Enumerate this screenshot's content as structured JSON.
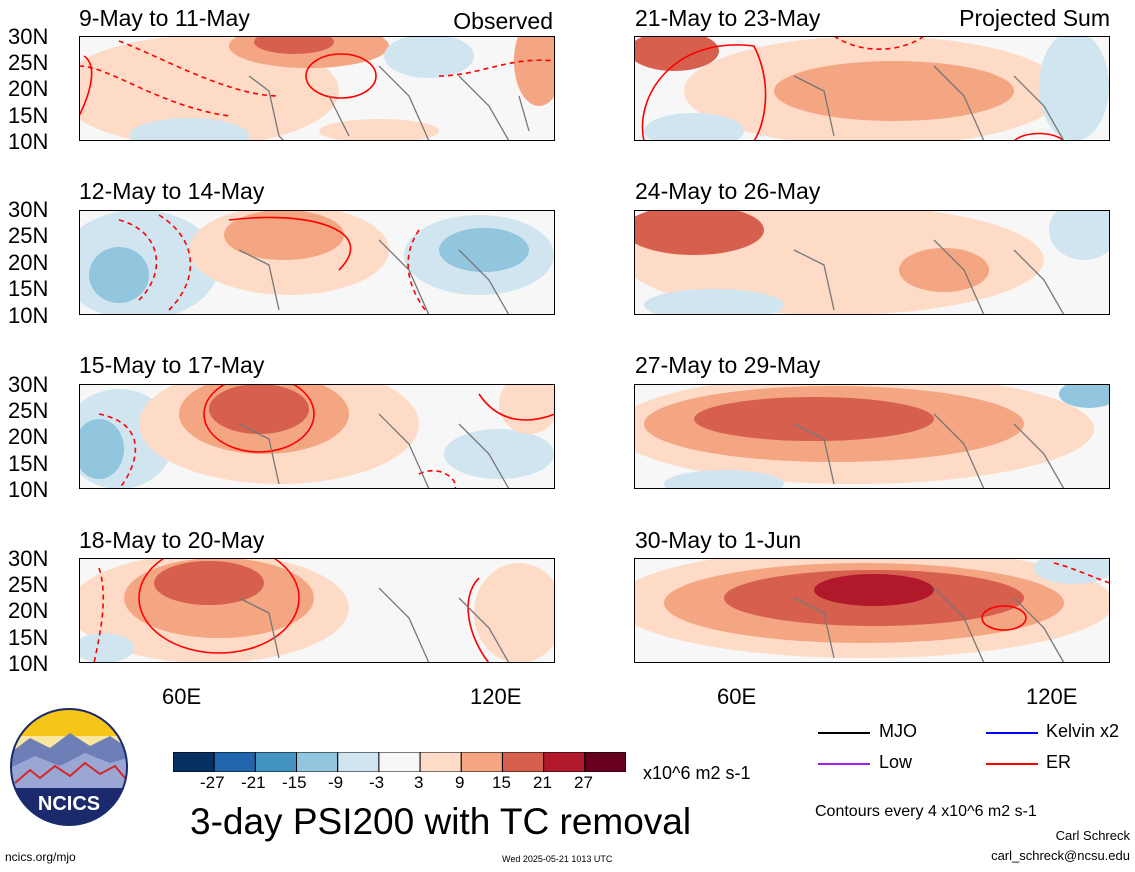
{
  "panels": [
    {
      "title": "9-May to 11-May",
      "tag": "Observed"
    },
    {
      "title": "12-May to 14-May",
      "tag": ""
    },
    {
      "title": "15-May to 17-May",
      "tag": ""
    },
    {
      "title": "18-May to 20-May",
      "tag": ""
    },
    {
      "title": "21-May to 23-May",
      "tag": "Projected Sum"
    },
    {
      "title": "24-May to 26-May",
      "tag": ""
    },
    {
      "title": "27-May to 29-May",
      "tag": ""
    },
    {
      "title": "30-May to 1-Jun",
      "tag": ""
    }
  ],
  "lat_labels": [
    "30N",
    "25N",
    "20N",
    "15N",
    "10N"
  ],
  "lon_labels": [
    "60E",
    "120E"
  ],
  "colorbar": {
    "colors": [
      "#053061",
      "#2166ac",
      "#4393c3",
      "#92c5de",
      "#d1e5f0",
      "#f7f7f7",
      "#fddbc7",
      "#f4a582",
      "#d6604d",
      "#b2182b",
      "#67001f"
    ],
    "tick_labels": [
      "-27",
      "-21",
      "-15",
      "-9",
      "-3",
      "3",
      "9",
      "15",
      "21",
      "27"
    ],
    "units": "x10^6 m2 s-1"
  },
  "title": "3-day PSI200 with TC removal",
  "legend": [
    {
      "label": "MJO",
      "color": "#000000"
    },
    {
      "label": "Kelvin x2",
      "color": "#0000ff"
    },
    {
      "label": "Low",
      "color": "#a020f0"
    },
    {
      "label": "ER",
      "color": "#ff0000"
    }
  ],
  "contour_note": "Contours every 4 x10^6 m2 s-1",
  "author": "Carl Schreck",
  "email": "carl_schreck@ncsu.edu",
  "site": "ncics.org/mjo",
  "timestamp": "Wed 2025-05-21 1013 UTC",
  "logo_text": "NCICS"
}
